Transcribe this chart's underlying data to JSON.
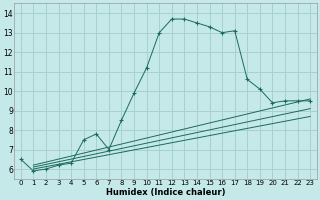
{
  "xlabel": "Humidex (Indice chaleur)",
  "bg_color": "#c5e8e8",
  "grid_color": "#a8d0d0",
  "line_color": "#1a6b5a",
  "xlim": [
    -0.5,
    23.5
  ],
  "ylim": [
    5.5,
    14.5
  ],
  "xticks": [
    0,
    1,
    2,
    3,
    4,
    5,
    6,
    7,
    8,
    9,
    10,
    11,
    12,
    13,
    14,
    15,
    16,
    17,
    18,
    19,
    20,
    21,
    22,
    23
  ],
  "yticks": [
    6,
    7,
    8,
    9,
    10,
    11,
    12,
    13,
    14
  ],
  "main_x": [
    0,
    1,
    2,
    3,
    4,
    5,
    6,
    7,
    8,
    9,
    10,
    11,
    12,
    13,
    14,
    15,
    16,
    17,
    18,
    19,
    20,
    21,
    22,
    23
  ],
  "main_y": [
    6.5,
    5.9,
    6.0,
    6.2,
    6.3,
    7.5,
    7.8,
    7.0,
    8.5,
    9.9,
    11.2,
    13.0,
    13.7,
    13.7,
    13.5,
    13.3,
    13.0,
    13.1,
    10.6,
    10.1,
    9.4,
    9.5,
    9.5,
    9.5
  ],
  "line2_x": [
    1,
    23
  ],
  "line2_y": [
    6.2,
    9.6
  ],
  "line3_x": [
    1,
    23
  ],
  "line3_y": [
    6.1,
    9.1
  ],
  "line4_x": [
    1,
    23
  ],
  "line4_y": [
    6.0,
    8.7
  ]
}
